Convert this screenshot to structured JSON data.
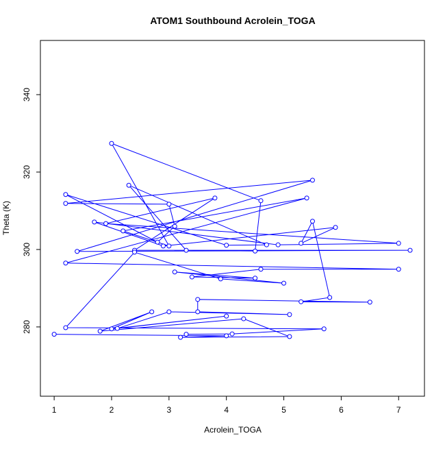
{
  "chart_data": {
    "type": "line",
    "title": "ATOM1 Southbound Acrolein_TOGA",
    "x_label": "Acrolein_TOGA",
    "y_label": "Theta (K)",
    "x": [
      1.0,
      4.0,
      3.2,
      5.1,
      4.3,
      1.8,
      2.7,
      2.0,
      4.0,
      2.1,
      3.0,
      5.1,
      3.5,
      3.5,
      6.5,
      5.3,
      5.8,
      5.5,
      5.3,
      5.9,
      2.9,
      1.7,
      4.9,
      7.0,
      1.9,
      3.8,
      2.4,
      7.2,
      1.4,
      5.5,
      1.2,
      3.0,
      3.1,
      2.8,
      1.2,
      4.0,
      4.7,
      2.3,
      3.3,
      4.5,
      4.6,
      2.0,
      3.0,
      2.2,
      5.4,
      1.2,
      7.0,
      4.6,
      3.4,
      4.5,
      3.1,
      5.0,
      3.9,
      2.4,
      1.2,
      5.7,
      4.1,
      3.3
    ],
    "series": [
      {
        "color": "#0000ff",
        "values": [
          278.1,
          277.7,
          277.3,
          277.5,
          282.1,
          278.9,
          283.9,
          279.5,
          282.8,
          279.6,
          283.9,
          283.2,
          283.9,
          287.1,
          286.4,
          286.5,
          287.6,
          307.3,
          301.6,
          305.7,
          300.9,
          307.1,
          301.2,
          301.6,
          306.7,
          313.3,
          299.8,
          299.8,
          299.5,
          317.9,
          311.9,
          311.7,
          306.0,
          301.9,
          314.2,
          301.1,
          301.2,
          316.6,
          299.8,
          299.6,
          312.6,
          327.4,
          300.9,
          304.8,
          313.3,
          296.5,
          294.9,
          294.9,
          292.9,
          292.6,
          294.2,
          291.3,
          292.4,
          299.3,
          279.8,
          279.5,
          278.2,
          278.1
        ]
      }
    ],
    "xlim": [
      0.76,
      7.45
    ],
    "ylim": [
      262.1,
      354.0
    ],
    "xticks": [
      1,
      2,
      3,
      4,
      5,
      6,
      7
    ],
    "yticks": [
      280,
      300,
      320,
      340
    ]
  }
}
